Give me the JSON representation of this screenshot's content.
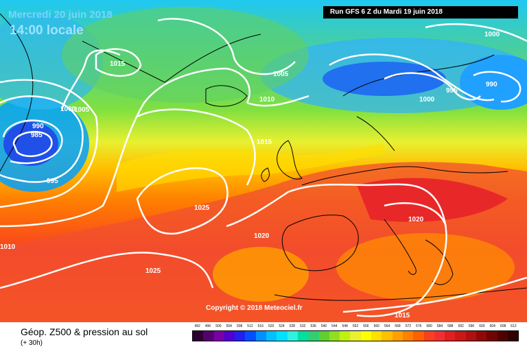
{
  "header": {
    "date": "Mercredi 20 juin 2018",
    "time": "14:00 locale",
    "run": "Run GFS 6 Z du Mardi 19 juin 2018"
  },
  "copyright": "Copyright © 2018 Meteociel.fr",
  "footer": {
    "title": "Géop. Z500 & pression au sol",
    "subtitle": "(+ 30h)"
  },
  "isobar_labels": [
    "1015",
    "1005",
    "1010",
    "1015",
    "1000",
    "1005",
    "990",
    "985",
    "995",
    "1025",
    "1010",
    "1025",
    "1020",
    "1020",
    "1015",
    "1000",
    "995",
    "1000",
    "990"
  ],
  "scale": {
    "values": [
      "492",
      "496",
      "500",
      "504",
      "508",
      "512",
      "516",
      "520",
      "524",
      "528",
      "532",
      "536",
      "540",
      "544",
      "548",
      "552",
      "556",
      "560",
      "564",
      "568",
      "572",
      "576",
      "580",
      "584",
      "588",
      "592",
      "596",
      "600",
      "604",
      "608",
      "612"
    ],
    "colors": [
      "#2e0032",
      "#55006e",
      "#7a00a8",
      "#5000d0",
      "#2020f0",
      "#0050ff",
      "#0090ff",
      "#00c0ff",
      "#00e0ff",
      "#30f0e0",
      "#00e0a0",
      "#30d070",
      "#60d030",
      "#90e020",
      "#c0f010",
      "#e8f030",
      "#ffff00",
      "#ffe000",
      "#ffc000",
      "#ffa000",
      "#ff8000",
      "#ff6000",
      "#f84020",
      "#f03030",
      "#e02020",
      "#c81818",
      "#b01010",
      "#900808",
      "#700404",
      "#500000",
      "#300000"
    ]
  },
  "colors": {
    "date_text": "#7ad3ff",
    "isobar": "#ffffff",
    "coastline": "#000000"
  }
}
